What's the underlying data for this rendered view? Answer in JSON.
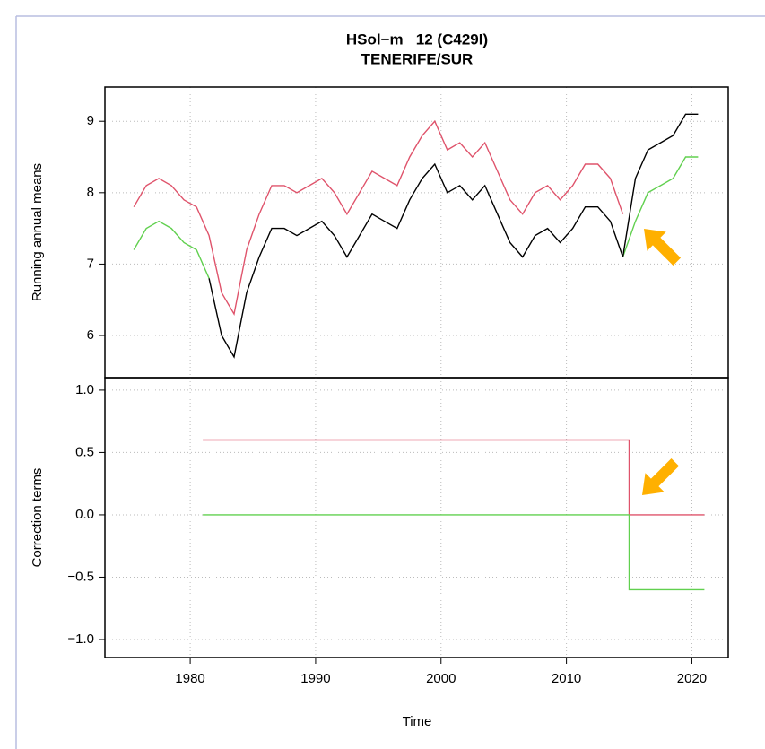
{
  "chart_data": [
    {
      "type": "line",
      "title": "HSol−m   12 (C429I)",
      "subtitle": "TENERIFE/SUR",
      "ylabel": "Running annual means",
      "x": [
        1975.5,
        1976.5,
        1977.5,
        1978.5,
        1979.5,
        1980.5,
        1981.5,
        1982.5,
        1983.5,
        1984.5,
        1985.5,
        1986.5,
        1987.5,
        1988.5,
        1989.5,
        1990.5,
        1991.5,
        1992.5,
        1993.5,
        1994.5,
        1995.5,
        1996.5,
        1997.5,
        1998.5,
        1999.5,
        2000.5,
        2001.5,
        2002.5,
        2003.5,
        2004.5,
        2005.5,
        2006.5,
        2007.5,
        2008.5,
        2009.5,
        2010.5,
        2011.5,
        2012.5,
        2013.5,
        2014.5,
        2015.5,
        2016.5,
        2017.5,
        2018.5,
        2019.5,
        2020.5
      ],
      "series": [
        {
          "color": "#DF536B",
          "values": [
            7.8,
            8.1,
            8.2,
            8.1,
            7.9,
            7.8,
            7.4,
            6.6,
            6.3,
            7.2,
            7.7,
            8.1,
            8.1,
            8.0,
            8.1,
            8.2,
            8.0,
            7.7,
            8.0,
            8.3,
            8.2,
            8.1,
            8.5,
            8.8,
            9.0,
            8.6,
            8.7,
            8.5,
            8.7,
            8.3,
            7.9,
            7.7,
            8.0,
            8.1,
            7.9,
            8.1,
            8.4,
            8.4,
            8.2,
            7.7,
            null,
            null,
            null,
            null,
            null,
            null
          ]
        },
        {
          "color": "#61D04F",
          "values": [
            7.2,
            7.5,
            7.6,
            7.5,
            7.3,
            7.2,
            6.8,
            null,
            null,
            null,
            null,
            null,
            null,
            null,
            null,
            null,
            null,
            null,
            null,
            null,
            null,
            null,
            null,
            null,
            null,
            null,
            null,
            null,
            null,
            null,
            null,
            null,
            null,
            null,
            null,
            null,
            null,
            null,
            null,
            7.1,
            7.6,
            8.0,
            8.1,
            8.2,
            8.5,
            8.5
          ]
        },
        {
          "color": "#000000",
          "values": [
            null,
            null,
            null,
            null,
            null,
            null,
            6.8,
            6.0,
            5.7,
            6.6,
            7.1,
            7.5,
            7.5,
            7.4,
            7.5,
            7.6,
            7.4,
            7.1,
            7.4,
            7.7,
            7.6,
            7.5,
            7.9,
            8.2,
            8.4,
            8.0,
            8.1,
            7.9,
            8.1,
            7.7,
            7.3,
            7.1,
            7.4,
            7.5,
            7.3,
            7.5,
            7.8,
            7.8,
            7.6,
            7.1,
            8.2,
            8.6,
            8.7,
            8.8,
            9.1,
            9.1
          ]
        }
      ],
      "xlim": [
        1973.2,
        2022.9
      ],
      "ylim": [
        5.41,
        9.48
      ],
      "yticks": [
        6,
        7,
        8,
        9
      ],
      "grid": true
    },
    {
      "type": "line",
      "ylabel": "Correction terms",
      "xlabel": "Time",
      "x": [
        1981,
        2015,
        2015,
        2021
      ],
      "series": [
        {
          "color": "#DF536B",
          "values": [
            0.6,
            0.6,
            0,
            0
          ]
        },
        {
          "color": "#61D04F",
          "values": [
            0,
            0,
            -0.6,
            -0.6
          ]
        }
      ],
      "xlim": [
        1973.2,
        2022.9
      ],
      "xticks": [
        1980,
        1990,
        2000,
        2010,
        2020
      ],
      "ylim": [
        -1.144,
        1.1
      ],
      "yticks": [
        {
          "value": -1,
          "label": "−1.0"
        },
        {
          "value": -0.5,
          "label": "−0.5"
        },
        {
          "value": 0,
          "label": "0.0"
        },
        0.5,
        {
          "value": 1,
          "label": "1.0"
        }
      ],
      "grid": true
    }
  ]
}
